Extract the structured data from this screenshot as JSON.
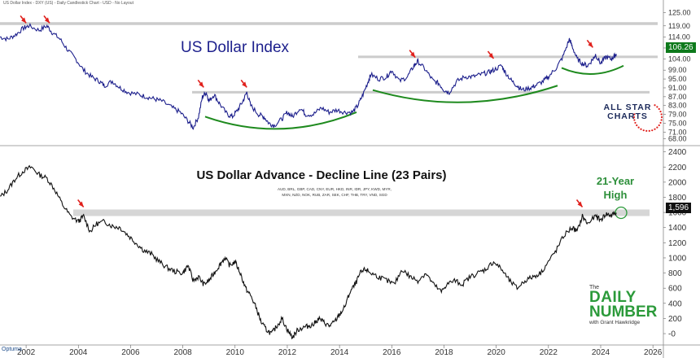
{
  "header": "US Dollar Index - DXY (US) - Daily Candlestick Chart - USD - No Layout",
  "chart_data": [
    {
      "type": "line",
      "title": "US Dollar Index",
      "x_start": 2001.0,
      "x_end": 2024.6,
      "xlim": [
        2001.0,
        2026.4
      ],
      "ylim": [
        66,
        127
      ],
      "y_ticks": [
        "125.00",
        "119.00",
        "114.00",
        "109.00",
        "104.00",
        "99.00",
        "95.00",
        "91.00",
        "87.00",
        "83.00",
        "79.00",
        "75.00",
        "71.00",
        "68.00"
      ],
      "y_tick_values": [
        125,
        119,
        114,
        109,
        104,
        99,
        95,
        91,
        87,
        83,
        79,
        75,
        71,
        68
      ],
      "last_value_label": "106.26",
      "series": [
        {
          "points": [
            [
              2001.0,
              114
            ],
            [
              2001.3,
              113
            ],
            [
              2001.6,
              115
            ],
            [
              2001.9,
              118
            ],
            [
              2002.1,
              119
            ],
            [
              2002.5,
              117
            ],
            [
              2002.8,
              119
            ],
            [
              2003.0,
              116
            ],
            [
              2003.3,
              113
            ],
            [
              2003.6,
              108
            ],
            [
              2003.9,
              104
            ],
            [
              2004.2,
              99
            ],
            [
              2004.5,
              96
            ],
            [
              2004.8,
              94
            ],
            [
              2005.0,
              92
            ],
            [
              2005.3,
              94
            ],
            [
              2005.6,
              91
            ],
            [
              2005.9,
              89
            ],
            [
              2006.3,
              88
            ],
            [
              2006.6,
              87
            ],
            [
              2006.9,
              86
            ],
            [
              2007.2,
              85
            ],
            [
              2007.6,
              82
            ],
            [
              2007.9,
              80
            ],
            [
              2008.2,
              76
            ],
            [
              2008.4,
              73
            ],
            [
              2008.6,
              78
            ],
            [
              2008.75,
              87
            ],
            [
              2008.9,
              89
            ],
            [
              2009.0,
              85
            ],
            [
              2009.2,
              88
            ],
            [
              2009.4,
              84
            ],
            [
              2009.7,
              79
            ],
            [
              2009.9,
              78
            ],
            [
              2010.1,
              81
            ],
            [
              2010.3,
              85
            ],
            [
              2010.45,
              89
            ],
            [
              2010.6,
              83
            ],
            [
              2010.9,
              79
            ],
            [
              2011.1,
              78
            ],
            [
              2011.3,
              75
            ],
            [
              2011.5,
              74
            ],
            [
              2011.8,
              77
            ],
            [
              2012.0,
              80
            ],
            [
              2012.2,
              78
            ],
            [
              2012.5,
              82
            ],
            [
              2012.7,
              79
            ],
            [
              2013.0,
              79
            ],
            [
              2013.3,
              82
            ],
            [
              2013.6,
              80
            ],
            [
              2013.9,
              81
            ],
            [
              2014.2,
              80
            ],
            [
              2014.5,
              80
            ],
            [
              2014.7,
              83
            ],
            [
              2014.9,
              88
            ],
            [
              2015.1,
              94
            ],
            [
              2015.2,
              97
            ],
            [
              2015.5,
              95
            ],
            [
              2015.8,
              96
            ],
            [
              2016.0,
              99
            ],
            [
              2016.3,
              94
            ],
            [
              2016.6,
              96
            ],
            [
              2016.85,
              101
            ],
            [
              2017.0,
              103
            ],
            [
              2017.3,
              99
            ],
            [
              2017.6,
              94
            ],
            [
              2017.8,
              93
            ],
            [
              2018.0,
              90
            ],
            [
              2018.2,
              89
            ],
            [
              2018.5,
              94
            ],
            [
              2018.8,
              96
            ],
            [
              2019.1,
              96
            ],
            [
              2019.4,
              97
            ],
            [
              2019.7,
              98
            ],
            [
              2019.9,
              99
            ],
            [
              2020.2,
              101
            ],
            [
              2020.35,
              98
            ],
            [
              2020.6,
              94
            ],
            [
              2020.8,
              92
            ],
            [
              2021.0,
              90
            ],
            [
              2021.3,
              91
            ],
            [
              2021.5,
              92
            ],
            [
              2021.8,
              94
            ],
            [
              2022.0,
              96
            ],
            [
              2022.3,
              100
            ],
            [
              2022.55,
              105
            ],
            [
              2022.8,
              113
            ],
            [
              2022.9,
              110
            ],
            [
              2023.1,
              104
            ],
            [
              2023.3,
              102
            ],
            [
              2023.5,
              101
            ],
            [
              2023.7,
              104
            ],
            [
              2023.8,
              106
            ],
            [
              2024.0,
              102
            ],
            [
              2024.2,
              105
            ],
            [
              2024.4,
              104
            ],
            [
              2024.5,
              105
            ],
            [
              2024.6,
              106.3
            ]
          ]
        }
      ]
    },
    {
      "type": "line",
      "title": "US Dollar Advance - Decline Line (23 Pairs)",
      "subtitle_lines": [
        "AUD, BRL, GBP, CAD, CNY, EUR, HKD, INR, IDR, JPY, KWD, MYR,",
        "MXN, NZD, NOK, RUB, ZAR, SEK, CHF, THB, TRY, VND, SGD"
      ],
      "x_start": 2001.0,
      "x_end": 2024.6,
      "xlim": [
        2001.0,
        2026.4
      ],
      "ylim": [
        -150,
        2450
      ],
      "x_ticks": [
        "2002",
        "2004",
        "2006",
        "2008",
        "2010",
        "2012",
        "2014",
        "2016",
        "2018",
        "2020",
        "2022",
        "2024",
        "2026"
      ],
      "x_tick_values": [
        2002,
        2004,
        2006,
        2008,
        2010,
        2012,
        2014,
        2016,
        2018,
        2020,
        2022,
        2024,
        2026
      ],
      "y_ticks": [
        "2400",
        "2200",
        "2000",
        "1800",
        "1600",
        "1400",
        "1200",
        "1000",
        "800",
        "600",
        "400",
        "200",
        "-0"
      ],
      "y_tick_values": [
        2400,
        2200,
        2000,
        1800,
        1600,
        1400,
        1200,
        1000,
        800,
        600,
        400,
        200,
        0
      ],
      "last_value_label": "1,596",
      "annotation": [
        "21-Year",
        "High"
      ],
      "series": [
        {
          "points": [
            [
              2001.0,
              1800
            ],
            [
              2001.3,
              1900
            ],
            [
              2001.6,
              2050
            ],
            [
              2001.9,
              2150
            ],
            [
              2002.2,
              2200
            ],
            [
              2002.5,
              2100
            ],
            [
              2002.8,
              2050
            ],
            [
              2003.1,
              1900
            ],
            [
              2003.4,
              1700
            ],
            [
              2003.7,
              1550
            ],
            [
              2004.0,
              1480
            ],
            [
              2004.2,
              1550
            ],
            [
              2004.45,
              1350
            ],
            [
              2004.7,
              1450
            ],
            [
              2005.0,
              1480
            ],
            [
              2005.3,
              1420
            ],
            [
              2005.6,
              1400
            ],
            [
              2005.9,
              1300
            ],
            [
              2006.2,
              1200
            ],
            [
              2006.5,
              1100
            ],
            [
              2006.8,
              1050
            ],
            [
              2007.1,
              950
            ],
            [
              2007.4,
              870
            ],
            [
              2007.7,
              820
            ],
            [
              2008.0,
              800
            ],
            [
              2008.2,
              900
            ],
            [
              2008.4,
              700
            ],
            [
              2008.6,
              750
            ],
            [
              2008.8,
              650
            ],
            [
              2009.0,
              700
            ],
            [
              2009.2,
              800
            ],
            [
              2009.4,
              900
            ],
            [
              2009.6,
              1000
            ],
            [
              2009.8,
              900
            ],
            [
              2010.0,
              950
            ],
            [
              2010.2,
              800
            ],
            [
              2010.4,
              600
            ],
            [
              2010.6,
              500
            ],
            [
              2010.8,
              350
            ],
            [
              2011.0,
              150
            ],
            [
              2011.2,
              50
            ],
            [
              2011.4,
              0
            ],
            [
              2011.6,
              100
            ],
            [
              2011.8,
              200
            ],
            [
              2012.0,
              50
            ],
            [
              2012.2,
              -50
            ],
            [
              2012.4,
              50
            ],
            [
              2012.6,
              80
            ],
            [
              2012.8,
              100
            ],
            [
              2013.0,
              120
            ],
            [
              2013.2,
              200
            ],
            [
              2013.4,
              150
            ],
            [
              2013.6,
              100
            ],
            [
              2013.8,
              150
            ],
            [
              2014.0,
              250
            ],
            [
              2014.2,
              350
            ],
            [
              2014.4,
              550
            ],
            [
              2014.6,
              650
            ],
            [
              2014.8,
              800
            ],
            [
              2015.0,
              850
            ],
            [
              2015.2,
              800
            ],
            [
              2015.5,
              750
            ],
            [
              2015.8,
              700
            ],
            [
              2016.1,
              650
            ],
            [
              2016.4,
              850
            ],
            [
              2016.7,
              750
            ],
            [
              2017.0,
              700
            ],
            [
              2017.3,
              800
            ],
            [
              2017.6,
              650
            ],
            [
              2017.9,
              550
            ],
            [
              2018.1,
              650
            ],
            [
              2018.4,
              700
            ],
            [
              2018.7,
              650
            ],
            [
              2019.0,
              750
            ],
            [
              2019.3,
              800
            ],
            [
              2019.6,
              850
            ],
            [
              2019.9,
              950
            ],
            [
              2020.2,
              850
            ],
            [
              2020.5,
              700
            ],
            [
              2020.8,
              600
            ],
            [
              2021.1,
              700
            ],
            [
              2021.4,
              750
            ],
            [
              2021.7,
              800
            ],
            [
              2022.0,
              950
            ],
            [
              2022.3,
              1100
            ],
            [
              2022.6,
              1300
            ],
            [
              2022.9,
              1400
            ],
            [
              2023.1,
              1350
            ],
            [
              2023.3,
              1550
            ],
            [
              2023.5,
              1450
            ],
            [
              2023.8,
              1550
            ],
            [
              2024.0,
              1500
            ],
            [
              2024.2,
              1580
            ],
            [
              2024.4,
              1560
            ],
            [
              2024.6,
              1596
            ]
          ]
        }
      ]
    }
  ],
  "colors": {
    "dxy_line": "#1c1f8c",
    "ad_line": "#111111",
    "arrow": "#e0201c",
    "cup": "#1e8a1e",
    "grid": "#cccccc",
    "highlight": "#2b9a3a"
  },
  "logos": {
    "allstar_line1": "ALL STAR",
    "allstar_line2": "CHARTS",
    "daily_the": "The",
    "daily_line1": "DAILY",
    "daily_line2": "NUMBER",
    "daily_by": "with Grant Hawkridge",
    "optuma": "Optuma"
  }
}
